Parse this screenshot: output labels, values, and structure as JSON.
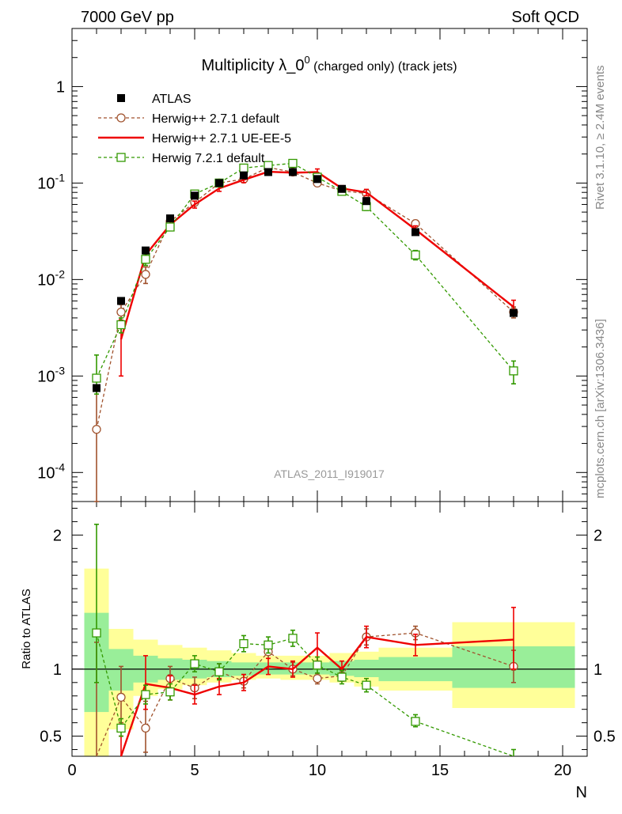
{
  "header": {
    "left": "7000 GeV pp",
    "right": "Soft QCD"
  },
  "side_labels": {
    "rivet": "Rivet 3.1.10, ≥ 2.4M events",
    "mcplots": "mcplots.cern.ch [arXiv:1306.3436]"
  },
  "chart_data": {
    "type": "line",
    "title_main": "Multiplicity λ_0",
    "title_sup": "0",
    "title_tail": " (charged only) (track jets)",
    "watermark": "ATLAS_2011_I919017",
    "xlabel": "N",
    "ratio_ylabel": "Ratio to ATLAS",
    "xlim": [
      0,
      21
    ],
    "ylim_main": [
      5e-05,
      4
    ],
    "ylim_ratio": [
      0.35,
      2.25
    ],
    "yscale_main": "log",
    "x_ticks": [
      "0",
      "5",
      "10",
      "15",
      "20"
    ],
    "main_y_ticks": [
      {
        "base": "10",
        "exp": "-4",
        "value": 0.0001
      },
      {
        "base": "10",
        "exp": "-3",
        "value": 0.001
      },
      {
        "base": "10",
        "exp": "-2",
        "value": 0.01
      },
      {
        "base": "10",
        "exp": "-1",
        "value": 0.1
      },
      {
        "base": "1",
        "exp": "",
        "value": 1
      }
    ],
    "ratio_y_ticks": [
      "0.5",
      "1",
      "2"
    ],
    "legend_position": "top-left",
    "data": {
      "name": "ATLAS",
      "x": [
        1,
        2,
        3,
        4,
        5,
        6,
        7,
        8,
        9,
        10,
        11,
        12,
        14,
        18
      ],
      "y": [
        0.00075,
        0.006,
        0.02,
        0.043,
        0.074,
        0.1,
        0.12,
        0.13,
        0.13,
        0.11,
        0.087,
        0.065,
        0.031,
        0.0045
      ]
    },
    "bands": {
      "edges": [
        0.5,
        1.5,
        2.5,
        3.5,
        4.5,
        5.5,
        6.5,
        7.5,
        8.5,
        9.5,
        10.5,
        11.5,
        12.5,
        15.5,
        20.5
      ],
      "yellow_lo": [
        0.3,
        0.55,
        0.8,
        0.85,
        0.88,
        0.9,
        0.92,
        0.93,
        0.92,
        0.92,
        0.9,
        0.87,
        0.84,
        0.71
      ],
      "yellow_hi": [
        1.75,
        1.3,
        1.22,
        1.18,
        1.16,
        1.14,
        1.12,
        1.1,
        1.1,
        1.1,
        1.12,
        1.13,
        1.16,
        1.35
      ],
      "green_lo": [
        0.68,
        0.84,
        0.9,
        0.92,
        0.93,
        0.94,
        0.95,
        0.96,
        0.96,
        0.96,
        0.95,
        0.94,
        0.91,
        0.86
      ],
      "green_hi": [
        1.42,
        1.15,
        1.1,
        1.08,
        1.07,
        1.06,
        1.05,
        1.05,
        1.05,
        1.05,
        1.06,
        1.07,
        1.09,
        1.17
      ]
    },
    "series": [
      {
        "name": "Herwig++ 2.7.1 default",
        "color": "#a0522d",
        "style": "dashed",
        "marker": "circle",
        "x": [
          1,
          2,
          3,
          4,
          5,
          6,
          7,
          8,
          9,
          10,
          11,
          12,
          14,
          18
        ],
        "y": [
          0.00028,
          0.0046,
          0.0113,
          0.04,
          0.063,
          0.1,
          0.11,
          0.145,
          0.13,
          0.1,
          0.083,
          0.078,
          0.038,
          0.0046
        ],
        "err_lo": [
          0.00028,
          0.0009,
          0.0022,
          0.004,
          0.005,
          0.006,
          0.006,
          0.007,
          0.007,
          0.006,
          0.005,
          0.005,
          0.003,
          0.0006
        ],
        "err_hi": [
          0.0005,
          0.0009,
          0.0022,
          0.004,
          0.005,
          0.006,
          0.006,
          0.007,
          0.007,
          0.006,
          0.005,
          0.005,
          0.003,
          0.0006
        ],
        "ratio": [
          0.35,
          0.79,
          0.56,
          0.93,
          0.86,
          0.98,
          0.91,
          1.13,
          1.0,
          0.93,
          0.95,
          1.24,
          1.27,
          1.02
        ],
        "ratio_lo": [
          0.35,
          0.6,
          0.38,
          0.84,
          0.78,
          0.92,
          0.86,
          1.08,
          0.95,
          0.89,
          0.91,
          1.18,
          1.22,
          0.9
        ],
        "ratio_hi": [
          1.2,
          1.02,
          0.76,
          1.02,
          0.94,
          1.04,
          0.96,
          1.18,
          1.05,
          0.97,
          0.99,
          1.3,
          1.32,
          1.14
        ]
      },
      {
        "name": "Herwig++ 2.7.1 UE-EE-5",
        "color": "#ee0000",
        "style": "solid",
        "marker": "none",
        "x": [
          2,
          3,
          4,
          5,
          6,
          7,
          8,
          9,
          10,
          11,
          12,
          14,
          18
        ],
        "y": [
          0.0024,
          0.018,
          0.037,
          0.06,
          0.088,
          0.108,
          0.131,
          0.128,
          0.13,
          0.088,
          0.08,
          0.033,
          0.0052
        ],
        "err_lo": [
          0.0014,
          0.003,
          0.004,
          0.005,
          0.006,
          0.007,
          0.008,
          0.008,
          0.01,
          0.006,
          0.006,
          0.003,
          0.0009
        ],
        "err_hi": [
          0.0014,
          0.003,
          0.004,
          0.005,
          0.006,
          0.007,
          0.008,
          0.008,
          0.01,
          0.006,
          0.006,
          0.003,
          0.0009
        ],
        "ratio": [
          0.3,
          0.89,
          0.86,
          0.81,
          0.87,
          0.9,
          1.02,
          1.0,
          1.16,
          1.0,
          1.24,
          1.18,
          1.22
        ],
        "ratio_lo": [
          0.3,
          0.7,
          0.77,
          0.74,
          0.81,
          0.84,
          0.96,
          0.94,
          1.06,
          0.94,
          1.16,
          1.1,
          1.0
        ],
        "ratio_hi": [
          0.5,
          1.1,
          0.95,
          0.88,
          0.93,
          0.96,
          1.08,
          1.06,
          1.27,
          1.06,
          1.32,
          1.26,
          1.46
        ]
      },
      {
        "name": "Herwig 7.2.1 default",
        "color": "#339900",
        "style": "dashed",
        "marker": "square",
        "x": [
          1,
          2,
          3,
          4,
          5,
          6,
          7,
          8,
          9,
          10,
          11,
          12,
          14,
          18
        ],
        "y": [
          0.00095,
          0.0034,
          0.0162,
          0.035,
          0.077,
          0.1,
          0.143,
          0.152,
          0.16,
          0.115,
          0.082,
          0.057,
          0.018,
          0.00113
        ],
        "err_lo": [
          0.0003,
          0.0006,
          0.0022,
          0.003,
          0.006,
          0.007,
          0.009,
          0.009,
          0.009,
          0.008,
          0.006,
          0.005,
          0.002,
          0.0003
        ],
        "err_hi": [
          0.0007,
          0.0006,
          0.0022,
          0.003,
          0.006,
          0.007,
          0.009,
          0.009,
          0.009,
          0.008,
          0.006,
          0.005,
          0.002,
          0.0003
        ],
        "ratio": [
          1.27,
          0.56,
          0.81,
          0.83,
          1.04,
          0.98,
          1.19,
          1.18,
          1.23,
          1.03,
          0.94,
          0.88,
          0.61,
          0.3
        ],
        "ratio_lo": [
          0.9,
          0.5,
          0.74,
          0.77,
          0.98,
          0.92,
          1.13,
          1.12,
          1.17,
          0.97,
          0.89,
          0.83,
          0.57,
          0.3
        ],
        "ratio_hi": [
          2.08,
          0.63,
          0.88,
          0.89,
          1.1,
          1.04,
          1.25,
          1.24,
          1.29,
          1.09,
          0.99,
          0.93,
          0.66,
          0.4
        ]
      }
    ]
  }
}
